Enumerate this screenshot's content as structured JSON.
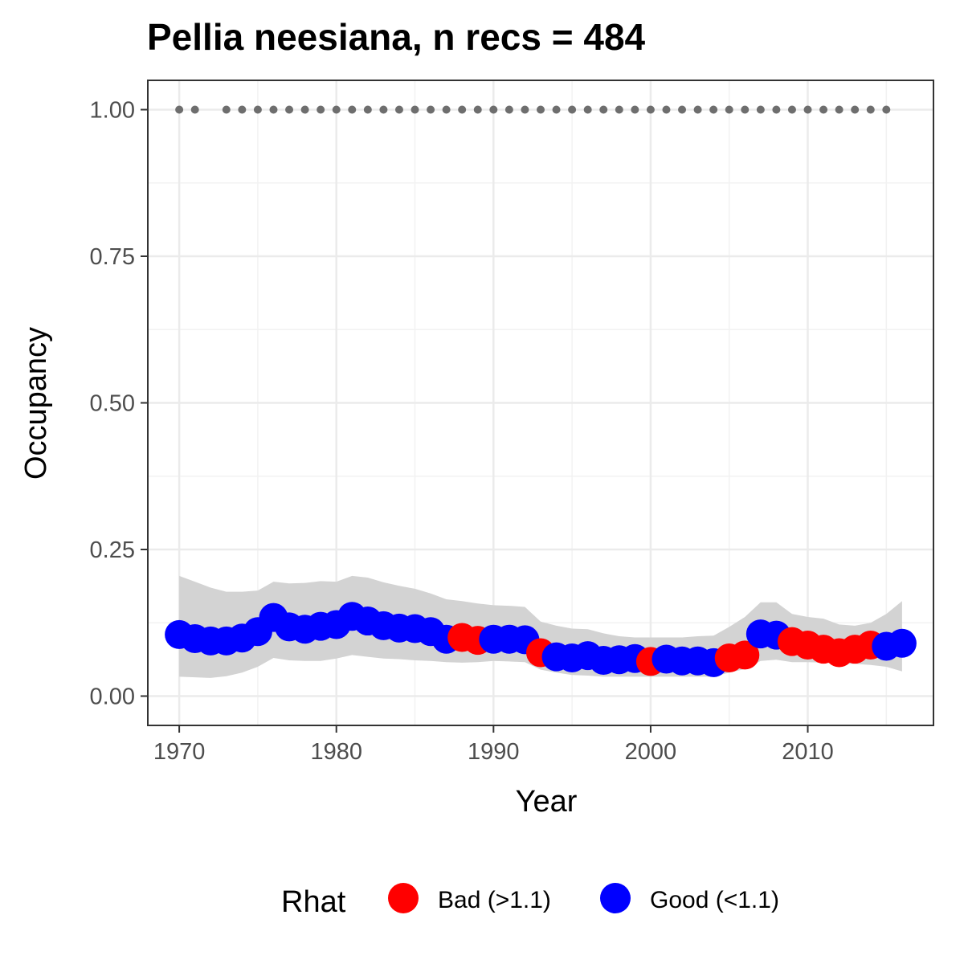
{
  "chart_data": {
    "type": "scatter",
    "title": "Pellia neesiana, n recs = 484",
    "xlabel": "Year",
    "ylabel": "Occupancy",
    "xlim": [
      1968,
      2018
    ],
    "ylim": [
      -0.05,
      1.05
    ],
    "x_ticks": [
      1970,
      1980,
      1990,
      2000,
      2010
    ],
    "x_tick_labels": [
      "1970",
      "1980",
      "1990",
      "2000",
      "2010"
    ],
    "y_ticks": [
      0,
      0.25,
      0.5,
      0.75,
      1.0
    ],
    "y_tick_labels": [
      "0.00",
      "0.25",
      "0.50",
      "0.75",
      "1.00"
    ],
    "grid": true,
    "legend": {
      "title": "Rhat",
      "position": "bottom",
      "entries": [
        {
          "label": "Bad (>1.1)",
          "color": "#ff0000"
        },
        {
          "label": "Good (<1.1)",
          "color": "#0000ff"
        }
      ]
    },
    "colors": {
      "bad": "#ff0000",
      "good": "#0000ff",
      "record_dots": "#6e6e6e",
      "ribbon": "#d3d3d3"
    },
    "years": [
      1970,
      1971,
      1972,
      1973,
      1974,
      1975,
      1976,
      1977,
      1978,
      1979,
      1980,
      1981,
      1982,
      1983,
      1984,
      1985,
      1986,
      1987,
      1988,
      1989,
      1990,
      1991,
      1992,
      1993,
      1994,
      1995,
      1996,
      1997,
      1998,
      1999,
      2000,
      2001,
      2002,
      2003,
      2004,
      2005,
      2006,
      2007,
      2008,
      2009,
      2010,
      2011,
      2012,
      2013,
      2014,
      2015,
      2016
    ],
    "occupancy": [
      0.105,
      0.098,
      0.094,
      0.094,
      0.099,
      0.11,
      0.134,
      0.118,
      0.114,
      0.119,
      0.122,
      0.136,
      0.128,
      0.12,
      0.116,
      0.115,
      0.11,
      0.097,
      0.1,
      0.095,
      0.097,
      0.097,
      0.096,
      0.074,
      0.067,
      0.065,
      0.069,
      0.061,
      0.062,
      0.064,
      0.059,
      0.063,
      0.06,
      0.06,
      0.057,
      0.065,
      0.07,
      0.106,
      0.104,
      0.093,
      0.087,
      0.08,
      0.074,
      0.08,
      0.087,
      0.085,
      0.09
    ],
    "lower_ci": [
      0.033,
      0.032,
      0.031,
      0.034,
      0.04,
      0.05,
      0.065,
      0.061,
      0.06,
      0.06,
      0.064,
      0.07,
      0.067,
      0.064,
      0.063,
      0.061,
      0.06,
      0.058,
      0.057,
      0.058,
      0.06,
      0.059,
      0.058,
      0.045,
      0.04,
      0.036,
      0.035,
      0.033,
      0.033,
      0.033,
      0.033,
      0.033,
      0.033,
      0.033,
      0.033,
      0.04,
      0.046,
      0.06,
      0.062,
      0.058,
      0.058,
      0.057,
      0.055,
      0.055,
      0.053,
      0.05,
      0.042
    ],
    "upper_ci": [
      0.205,
      0.195,
      0.185,
      0.178,
      0.178,
      0.18,
      0.195,
      0.192,
      0.193,
      0.196,
      0.195,
      0.205,
      0.202,
      0.194,
      0.188,
      0.183,
      0.175,
      0.165,
      0.162,
      0.158,
      0.155,
      0.154,
      0.152,
      0.127,
      0.12,
      0.115,
      0.114,
      0.107,
      0.102,
      0.1,
      0.1,
      0.1,
      0.1,
      0.102,
      0.103,
      0.118,
      0.135,
      0.16,
      0.16,
      0.14,
      0.135,
      0.132,
      0.122,
      0.12,
      0.125,
      0.14,
      0.162
    ],
    "rhat_status": [
      "good",
      "good",
      "good",
      "good",
      "good",
      "good",
      "good",
      "good",
      "good",
      "good",
      "good",
      "good",
      "good",
      "good",
      "good",
      "good",
      "good",
      "good",
      "bad",
      "bad",
      "good",
      "good",
      "good",
      "bad",
      "good",
      "good",
      "good",
      "good",
      "good",
      "good",
      "bad",
      "good",
      "good",
      "good",
      "good",
      "bad",
      "bad",
      "good",
      "good",
      "bad",
      "bad",
      "bad",
      "bad",
      "bad",
      "bad",
      "good",
      "good"
    ],
    "record_years": [
      1970,
      1971,
      1973,
      1974,
      1975,
      1976,
      1977,
      1978,
      1979,
      1980,
      1981,
      1982,
      1983,
      1984,
      1985,
      1986,
      1987,
      1988,
      1989,
      1990,
      1991,
      1992,
      1993,
      1994,
      1995,
      1996,
      1997,
      1998,
      1999,
      2000,
      2001,
      2002,
      2003,
      2004,
      2005,
      2006,
      2007,
      2008,
      2009,
      2010,
      2011,
      2012,
      2013,
      2014,
      2015
    ],
    "record_value": 1.0
  }
}
